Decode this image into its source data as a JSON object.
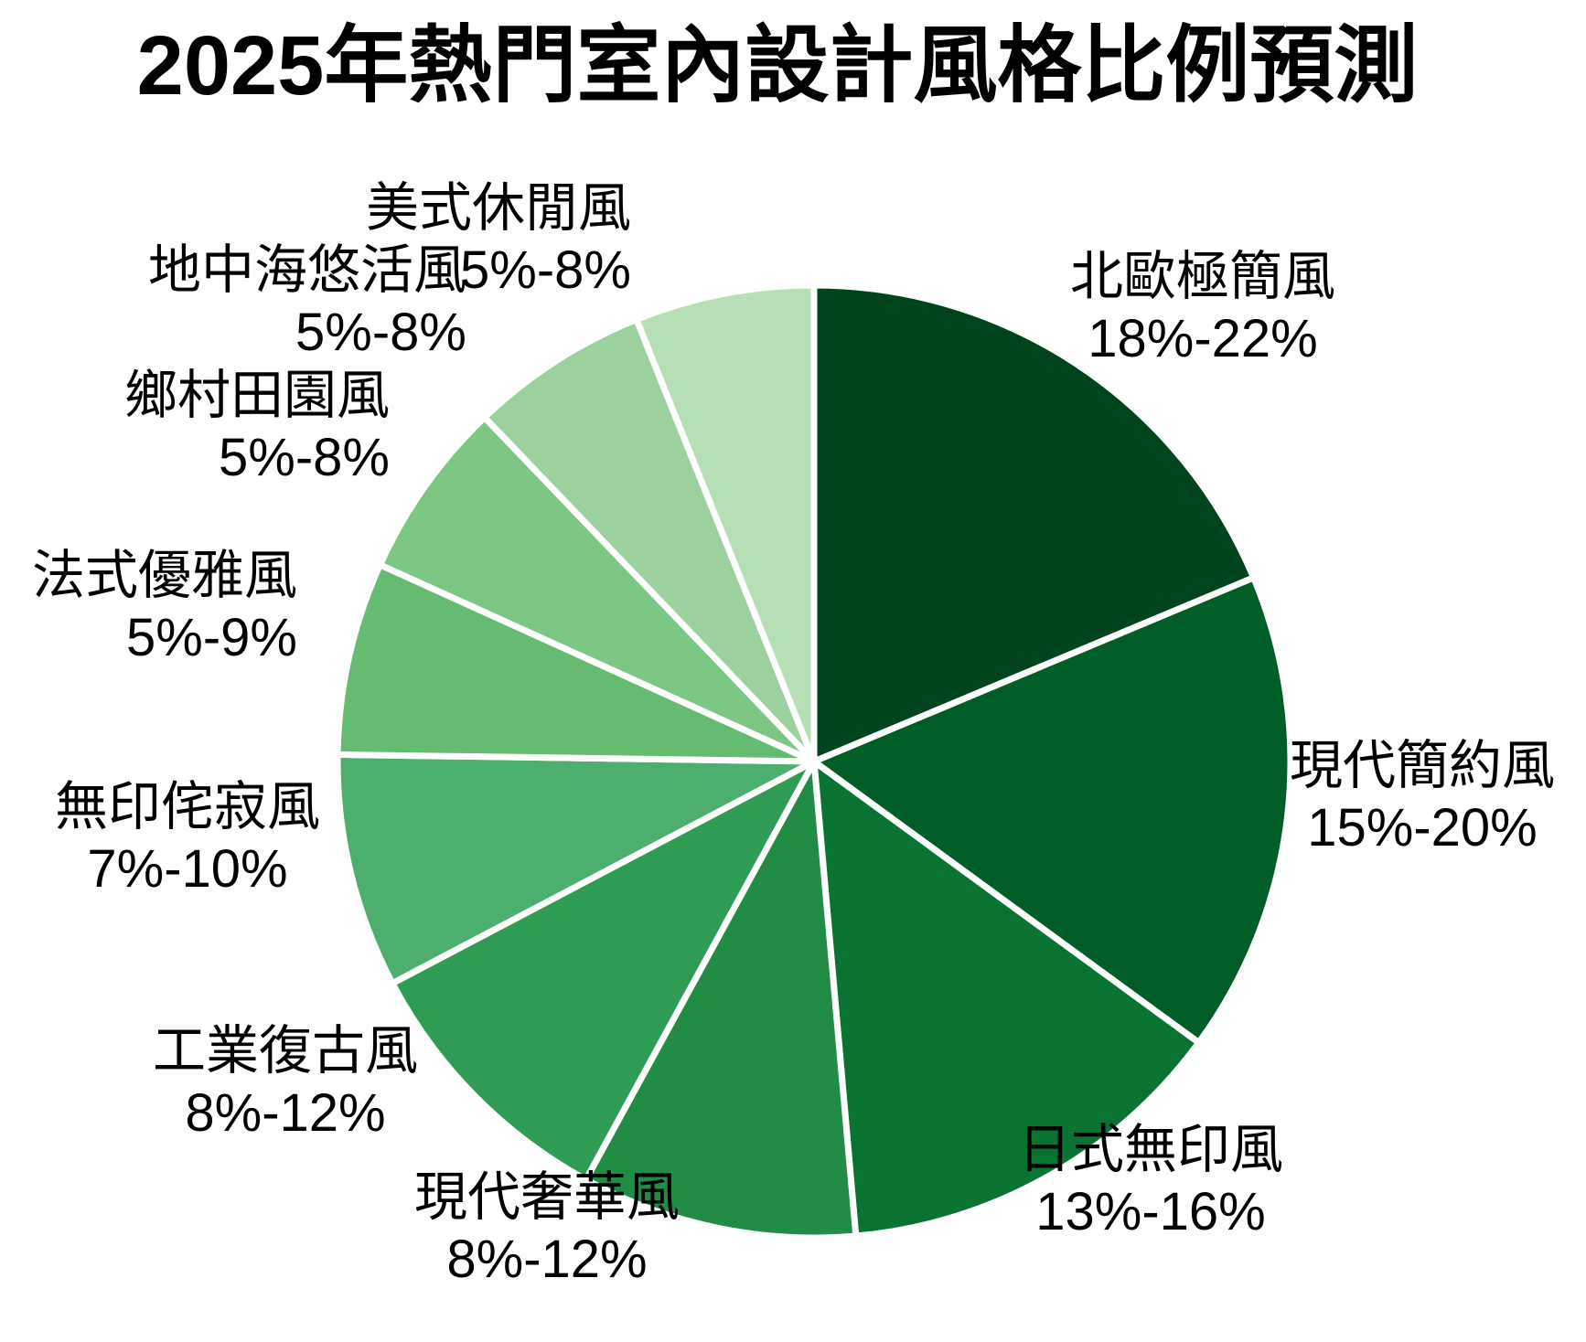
{
  "chart_data": {
    "type": "pie",
    "title": "2025年熱門室內設計風格比例預測",
    "unit": "%",
    "direction": "clockwise",
    "start_angle_deg": 0,
    "background": "#ffffff",
    "slice_border_color": "#ffffff",
    "legend_position": "none",
    "slices": [
      {
        "name": "北歐極簡風",
        "range": "18%-22%",
        "min": 18,
        "max": 22,
        "mid": 20,
        "color": "#00441b"
      },
      {
        "name": "現代簡約風",
        "range": "15%-20%",
        "min": 15,
        "max": 20,
        "mid": 17.5,
        "color": "#015d26"
      },
      {
        "name": "日式無印風",
        "range": "13%-16%",
        "min": 13,
        "max": 16,
        "mid": 14.5,
        "color": "#097432"
      },
      {
        "name": "現代奢華風",
        "range": "8%-12%",
        "min": 8,
        "max": 12,
        "mid": 10,
        "color": "#218c44"
      },
      {
        "name": "工業復古風",
        "range": "8%-12%",
        "min": 8,
        "max": 12,
        "mid": 10,
        "color": "#2f9c53"
      },
      {
        "name": "無印侘寂風",
        "range": "7%-10%",
        "min": 7,
        "max": 10,
        "mid": 8.5,
        "color": "#4caf6d"
      },
      {
        "name": "法式優雅風",
        "range": "5%-9%",
        "min": 5,
        "max": 9,
        "mid": 7,
        "color": "#65bb70"
      },
      {
        "name": "鄉村田園風",
        "range": "5%-8%",
        "min": 5,
        "max": 8,
        "mid": 6.5,
        "color": "#7cc782"
      },
      {
        "name": "地中海悠活風",
        "range": "5%-8%",
        "min": 5,
        "max": 8,
        "mid": 6.5,
        "color": "#9ad19c"
      },
      {
        "name": "美式休閒風",
        "range": "5%-8%",
        "min": 5,
        "max": 8,
        "mid": 6.5,
        "color": "#b7dfb6"
      }
    ]
  }
}
